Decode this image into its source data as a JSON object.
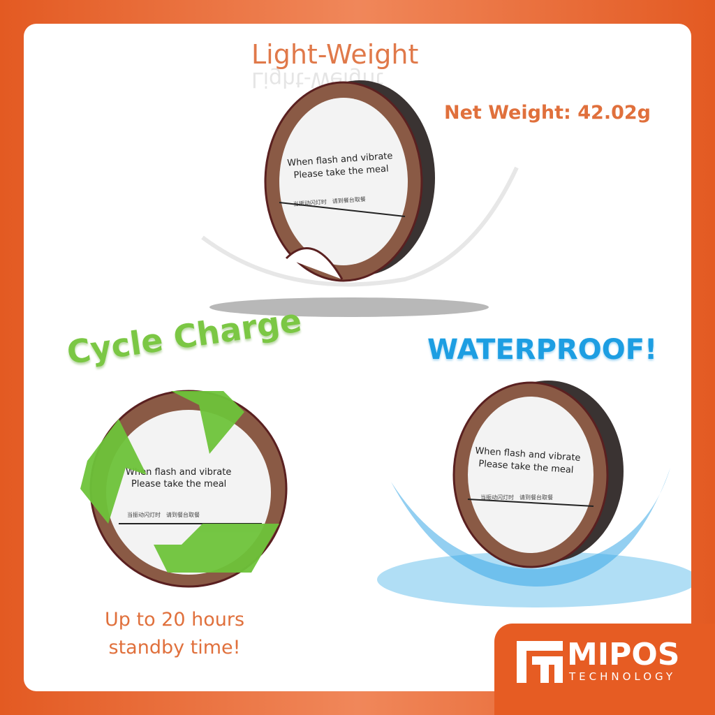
{
  "title": "Light-Weight",
  "net_weight": "Net Weight: 42.02g",
  "cycle": "Cycle Charge",
  "standby": [
    "Up to 20 hours",
    "standby time!"
  ],
  "waterproof": "WATERPROOF!",
  "device": {
    "line1": "When flash and vibrate",
    "line2": "Please take the meal",
    "cn": "当振动闪灯时　请到餐台取餐"
  },
  "logo": {
    "name": "MIPOS",
    "sub": "TECHNOLOGY"
  },
  "colors": {
    "brand": "#e65c23",
    "ring": "#8a5a45",
    "green": "#7bc744",
    "blue": "#1d9ee2"
  }
}
